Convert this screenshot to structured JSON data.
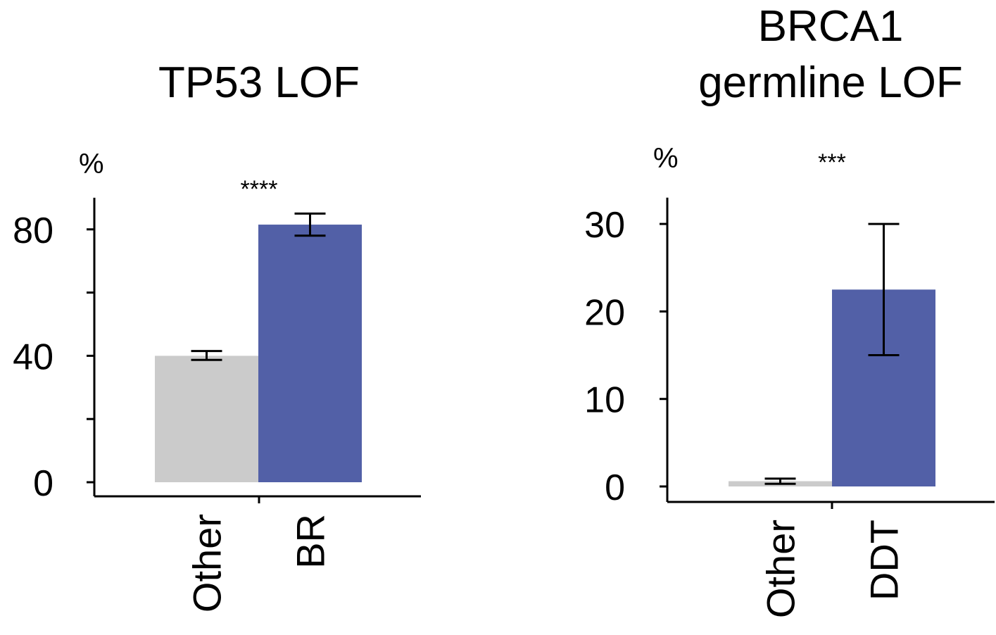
{
  "chart_data": [
    {
      "type": "bar",
      "title": "TP53 LOF",
      "ylabel": "%",
      "significance": "****",
      "categories": [
        "Other",
        "BR"
      ],
      "values": [
        40,
        81.5
      ],
      "error_low": [
        38.7,
        78
      ],
      "error_high": [
        41.5,
        85
      ],
      "colors": [
        "#cbcbcb",
        "#5260a7"
      ],
      "ylim": [
        0,
        90
      ],
      "ticks": [
        0,
        40,
        80
      ],
      "minor_ticks": [
        20,
        60
      ],
      "tick_labels": [
        "0",
        "40",
        "80"
      ]
    },
    {
      "type": "bar",
      "title": [
        "BRCA1",
        "germline LOF"
      ],
      "ylabel": "%",
      "significance": "***",
      "categories": [
        "Other",
        "DDT"
      ],
      "values": [
        0.6,
        22.5
      ],
      "error_low": [
        0.3,
        15
      ],
      "error_high": [
        0.9,
        30
      ],
      "colors": [
        "#cbcbcb",
        "#5260a7"
      ],
      "ylim": [
        0,
        33
      ],
      "ticks": [
        0,
        10,
        20,
        30
      ],
      "minor_ticks": [],
      "tick_labels": [
        "0",
        "10",
        "20",
        "30"
      ]
    }
  ],
  "error_color": "#000000"
}
